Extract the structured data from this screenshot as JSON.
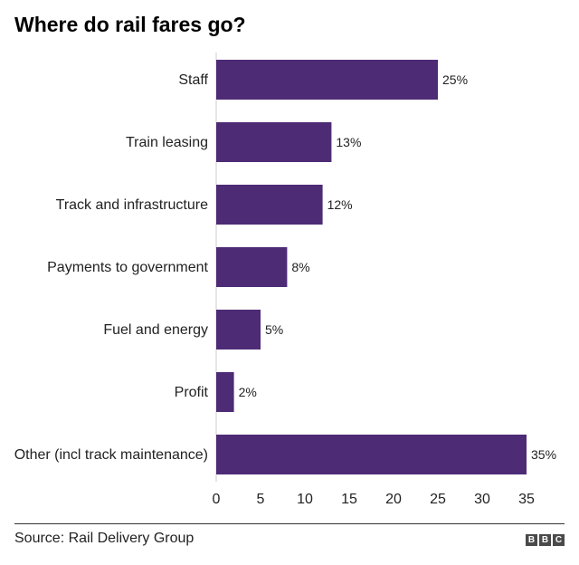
{
  "chart_data": {
    "type": "bar",
    "orientation": "horizontal",
    "title": "Where do rail fares go?",
    "categories": [
      "Staff",
      "Train leasing",
      "Track and infrastructure",
      "Payments to government",
      "Fuel and energy",
      "Profit",
      "Other (incl track maintenance)"
    ],
    "values": [
      25,
      13,
      12,
      8,
      5,
      2,
      35
    ],
    "data_labels": [
      "25%",
      "13%",
      "12%",
      "8%",
      "5%",
      "2%",
      "35%"
    ],
    "xlim": [
      0,
      35
    ],
    "xticks": [
      0,
      5,
      10,
      15,
      20,
      25,
      30,
      35
    ],
    "xlabel": "",
    "ylabel": "",
    "grid": false,
    "bar_color": "#4d2b75"
  },
  "footer": {
    "source": "Source: Rail Delivery Group",
    "logo": "BBC",
    "logo_letters": [
      "B",
      "B",
      "C"
    ]
  }
}
